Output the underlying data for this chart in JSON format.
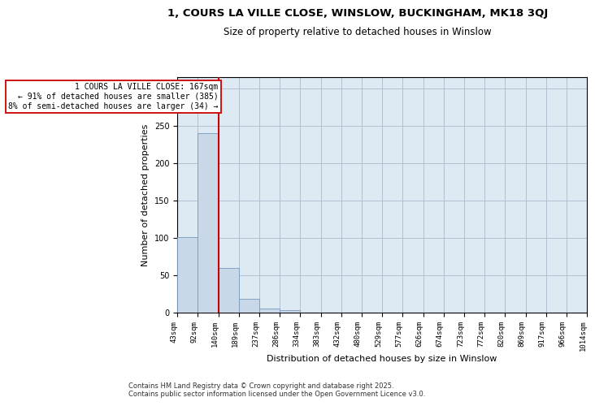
{
  "title": "1, COURS LA VILLE CLOSE, WINSLOW, BUCKINGHAM, MK18 3QJ",
  "subtitle": "Size of property relative to detached houses in Winslow",
  "xlabel": "Distribution of detached houses by size in Winslow",
  "ylabel": "Number of detached properties",
  "bar_color": "#c8d8e8",
  "bar_edge_color": "#7799bb",
  "bar_values": [
    101,
    240,
    60,
    19,
    5,
    3,
    0,
    0,
    0,
    0,
    0,
    0,
    0,
    0,
    0,
    0,
    0,
    0,
    0,
    0
  ],
  "bin_labels": [
    "43sqm",
    "92sqm",
    "140sqm",
    "189sqm",
    "237sqm",
    "286sqm",
    "334sqm",
    "383sqm",
    "432sqm",
    "480sqm",
    "529sqm",
    "577sqm",
    "626sqm",
    "674sqm",
    "723sqm",
    "772sqm",
    "820sqm",
    "869sqm",
    "917sqm",
    "966sqm",
    "1014sqm"
  ],
  "vline_pos": 1.5,
  "vline_color": "#cc0000",
  "annotation_text": "1 COURS LA VILLE CLOSE: 167sqm\n← 91% of detached houses are smaller (385)\n8% of semi-detached houses are larger (34) →",
  "annotation_box_color": "#cc0000",
  "ylim": [
    0,
    315
  ],
  "yticks": [
    0,
    50,
    100,
    150,
    200,
    250,
    300
  ],
  "grid_color": "#aabbcc",
  "bg_color": "#ddeaf4",
  "footnote": "Contains HM Land Registry data © Crown copyright and database right 2025.\nContains public sector information licensed under the Open Government Licence v3.0.",
  "title_fontsize": 9.5,
  "subtitle_fontsize": 8.5,
  "label_fontsize": 8,
  "tick_fontsize": 6.5,
  "annotation_fontsize": 7,
  "footnote_fontsize": 6
}
